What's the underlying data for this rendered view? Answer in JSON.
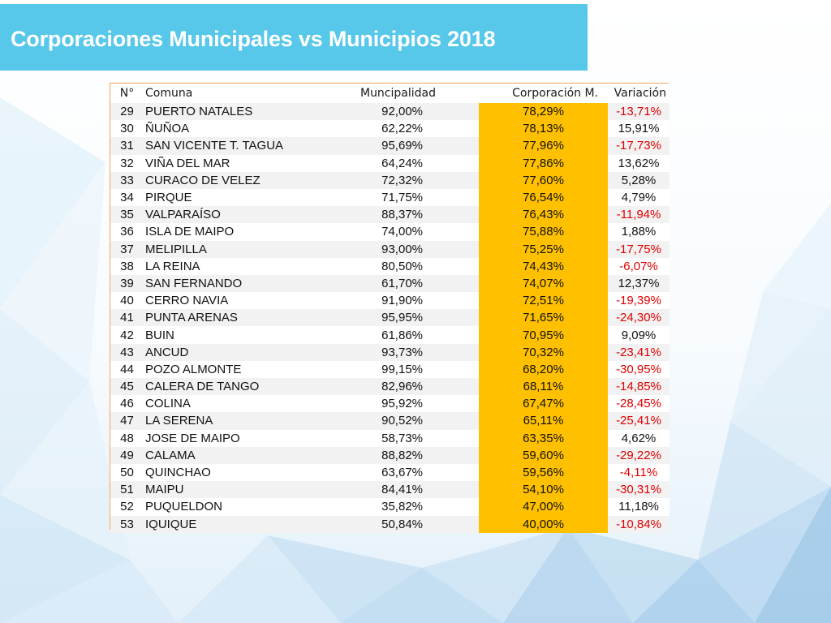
{
  "slide": {
    "title": "Corporaciones Municipales vs Municipios 2018"
  },
  "colors": {
    "title_bar": "#57c8ea",
    "highlight_column": "#ffc000",
    "negative_text": "#e00000",
    "table_border": "#f2a65f"
  },
  "table": {
    "headers": {
      "n": "N°",
      "comuna": "Comuna",
      "municipalidad": "Muncipalidad",
      "corporacion": "Corporación M.",
      "variacion": "Variación"
    },
    "rows": [
      {
        "n": "29",
        "comuna": "PUERTO NATALES",
        "municipalidad": "92,00%",
        "corporacion": "78,29%",
        "variacion": "-13,71%",
        "negative": true
      },
      {
        "n": "30",
        "comuna": "ÑUÑOA",
        "municipalidad": "62,22%",
        "corporacion": "78,13%",
        "variacion": "15,91%",
        "negative": false
      },
      {
        "n": "31",
        "comuna": "SAN VICENTE T. TAGUA",
        "municipalidad": "95,69%",
        "corporacion": "77,96%",
        "variacion": "-17,73%",
        "negative": true
      },
      {
        "n": "32",
        "comuna": "VIÑA DEL MAR",
        "municipalidad": "64,24%",
        "corporacion": "77,86%",
        "variacion": "13,62%",
        "negative": false
      },
      {
        "n": "33",
        "comuna": "CURACO DE VELEZ",
        "municipalidad": "72,32%",
        "corporacion": "77,60%",
        "variacion": "5,28%",
        "negative": false
      },
      {
        "n": "34",
        "comuna": "PIRQUE",
        "municipalidad": "71,75%",
        "corporacion": "76,54%",
        "variacion": "4,79%",
        "negative": false
      },
      {
        "n": "35",
        "comuna": "VALPARAÍSO",
        "municipalidad": "88,37%",
        "corporacion": "76,43%",
        "variacion": "-11,94%",
        "negative": true
      },
      {
        "n": "36",
        "comuna": "ISLA DE MAIPO",
        "municipalidad": "74,00%",
        "corporacion": "75,88%",
        "variacion": "1,88%",
        "negative": false
      },
      {
        "n": "37",
        "comuna": "MELIPILLA",
        "municipalidad": "93,00%",
        "corporacion": "75,25%",
        "variacion": "-17,75%",
        "negative": true
      },
      {
        "n": "38",
        "comuna": "LA REINA",
        "municipalidad": "80,50%",
        "corporacion": "74,43%",
        "variacion": "-6,07%",
        "negative": true
      },
      {
        "n": "39",
        "comuna": "SAN FERNANDO",
        "municipalidad": "61,70%",
        "corporacion": "74,07%",
        "variacion": "12,37%",
        "negative": false
      },
      {
        "n": "40",
        "comuna": "CERRO NAVIA",
        "municipalidad": "91,90%",
        "corporacion": "72,51%",
        "variacion": "-19,39%",
        "negative": true
      },
      {
        "n": "41",
        "comuna": "PUNTA ARENAS",
        "municipalidad": "95,95%",
        "corporacion": "71,65%",
        "variacion": "-24,30%",
        "negative": true
      },
      {
        "n": "42",
        "comuna": "BUIN",
        "municipalidad": "61,86%",
        "corporacion": "70,95%",
        "variacion": "9,09%",
        "negative": false
      },
      {
        "n": "43",
        "comuna": "ANCUD",
        "municipalidad": "93,73%",
        "corporacion": "70,32%",
        "variacion": "-23,41%",
        "negative": true
      },
      {
        "n": "44",
        "comuna": "POZO ALMONTE",
        "municipalidad": "99,15%",
        "corporacion": "68,20%",
        "variacion": "-30,95%",
        "negative": true
      },
      {
        "n": "45",
        "comuna": "CALERA DE TANGO",
        "municipalidad": "82,96%",
        "corporacion": "68,11%",
        "variacion": "-14,85%",
        "negative": true
      },
      {
        "n": "46",
        "comuna": "COLINA",
        "municipalidad": "95,92%",
        "corporacion": "67,47%",
        "variacion": "-28,45%",
        "negative": true
      },
      {
        "n": "47",
        "comuna": "LA SERENA",
        "municipalidad": "90,52%",
        "corporacion": "65,11%",
        "variacion": "-25,41%",
        "negative": true
      },
      {
        "n": "48",
        "comuna": "JOSE DE MAIPO",
        "municipalidad": "58,73%",
        "corporacion": "63,35%",
        "variacion": "4,62%",
        "negative": false
      },
      {
        "n": "49",
        "comuna": "CALAMA",
        "municipalidad": "88,82%",
        "corporacion": "59,60%",
        "variacion": "-29,22%",
        "negative": true
      },
      {
        "n": "50",
        "comuna": "QUINCHAO",
        "municipalidad": "63,67%",
        "corporacion": "59,56%",
        "variacion": "-4,11%",
        "negative": true
      },
      {
        "n": "51",
        "comuna": "MAIPU",
        "municipalidad": "84,41%",
        "corporacion": "54,10%",
        "variacion": "-30,31%",
        "negative": true
      },
      {
        "n": "52",
        "comuna": "PUQUELDON",
        "municipalidad": "35,82%",
        "corporacion": "47,00%",
        "variacion": "11,18%",
        "negative": false
      },
      {
        "n": "53",
        "comuna": "IQUIQUE",
        "municipalidad": "50,84%",
        "corporacion": "40,00%",
        "variacion": "-10,84%",
        "negative": true
      }
    ]
  }
}
